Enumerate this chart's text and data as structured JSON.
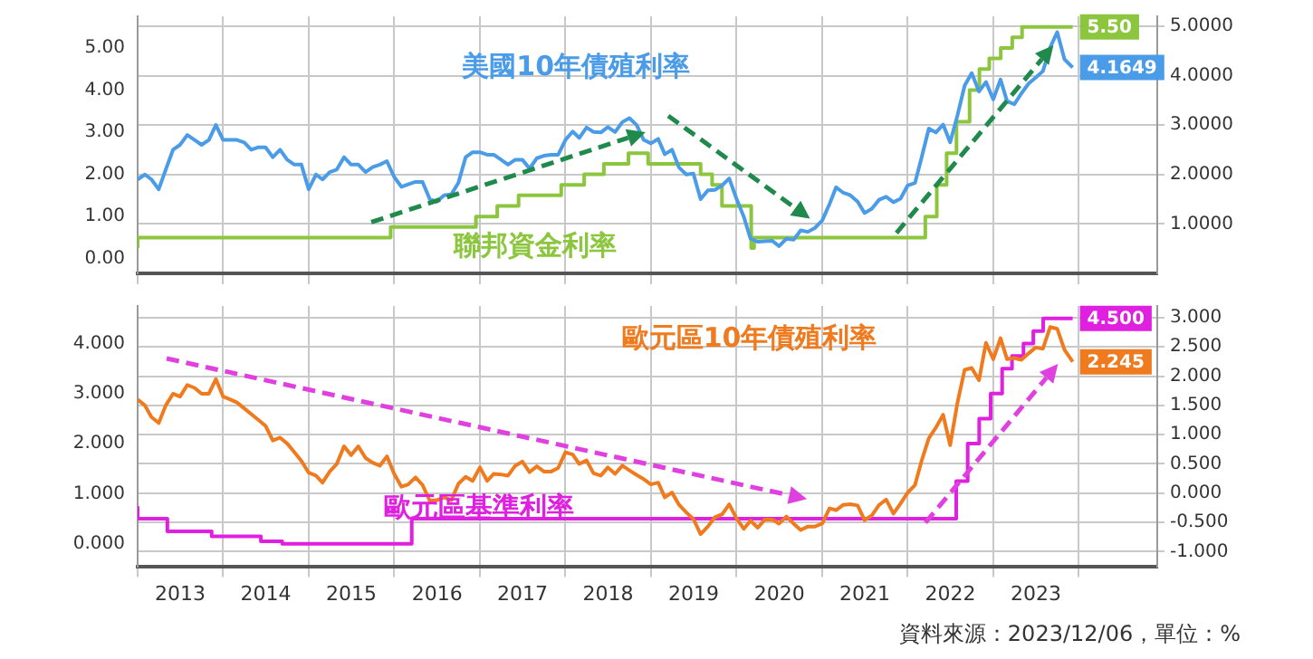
{
  "chart_data": [
    {
      "type": "line",
      "x": [
        "2013-01",
        "2013-02",
        "2013-03",
        "2013-04",
        "2013-05",
        "2013-06",
        "2013-07",
        "2013-08",
        "2013-09",
        "2013-10",
        "2013-11",
        "2013-12",
        "2014-01",
        "2014-02",
        "2014-03",
        "2014-04",
        "2014-05",
        "2014-06",
        "2014-07",
        "2014-08",
        "2014-09",
        "2014-10",
        "2014-11",
        "2014-12",
        "2015-01",
        "2015-02",
        "2015-03",
        "2015-04",
        "2015-05",
        "2015-06",
        "2015-07",
        "2015-08",
        "2015-09",
        "2015-10",
        "2015-11",
        "2015-12",
        "2016-01",
        "2016-02",
        "2016-03",
        "2016-04",
        "2016-05",
        "2016-06",
        "2016-07",
        "2016-08",
        "2016-09",
        "2016-10",
        "2016-11",
        "2016-12",
        "2017-01",
        "2017-02",
        "2017-03",
        "2017-04",
        "2017-05",
        "2017-06",
        "2017-07",
        "2017-08",
        "2017-09",
        "2017-10",
        "2017-11",
        "2017-12",
        "2018-01",
        "2018-02",
        "2018-03",
        "2018-04",
        "2018-05",
        "2018-06",
        "2018-07",
        "2018-08",
        "2018-09",
        "2018-10",
        "2018-11",
        "2018-12",
        "2019-01",
        "2019-02",
        "2019-03",
        "2019-04",
        "2019-05",
        "2019-06",
        "2019-07",
        "2019-08",
        "2019-09",
        "2019-10",
        "2019-11",
        "2019-12",
        "2020-01",
        "2020-02",
        "2020-03",
        "2020-04",
        "2020-05",
        "2020-06",
        "2020-07",
        "2020-08",
        "2020-09",
        "2020-10",
        "2020-11",
        "2020-12",
        "2021-01",
        "2021-02",
        "2021-03",
        "2021-04",
        "2021-05",
        "2021-06",
        "2021-07",
        "2021-08",
        "2021-09",
        "2021-10",
        "2021-11",
        "2021-12",
        "2022-01",
        "2022-02",
        "2022-03",
        "2022-04",
        "2022-05",
        "2022-06",
        "2022-07",
        "2022-08",
        "2022-09",
        "2022-10",
        "2022-11",
        "2022-12",
        "2023-01",
        "2023-02",
        "2023-03",
        "2023-04",
        "2023-05",
        "2023-06",
        "2023-07",
        "2023-08",
        "2023-09",
        "2023-10",
        "2023-11",
        "2023-12-06"
      ],
      "xlim": [
        "2013-01-01",
        "2024-12-01"
      ],
      "xticks": [
        {
          "value": "2013-01-01",
          "label": null
        },
        {
          "value": "2014-01-01",
          "label": null
        },
        {
          "value": "2015-01-01",
          "label": null
        },
        {
          "value": "2016-01-01",
          "label": null
        },
        {
          "value": "2017-01-01",
          "label": null
        },
        {
          "value": "2018-01-01",
          "label": null
        },
        {
          "value": "2019-01-01",
          "label": null
        },
        {
          "value": "2020-01-01",
          "label": null
        },
        {
          "value": "2021-01-01",
          "label": null
        },
        {
          "value": "2022-01-01",
          "label": null
        },
        {
          "value": "2023-01-01",
          "label": null
        },
        {
          "value": "2024-01-01",
          "label": null
        }
      ],
      "ylim": [
        -0.35,
        5.75
      ],
      "yticks": [
        {
          "value": 0,
          "label": "0.00"
        },
        {
          "value": 1,
          "label": "1.00"
        },
        {
          "value": 2,
          "label": "2.00"
        },
        {
          "value": 3,
          "label": "3.00"
        },
        {
          "value": 4,
          "label": "4.00"
        },
        {
          "value": 5,
          "label": "5.00"
        }
      ],
      "y2lim": [
        0,
        5.2
      ],
      "y2ticks": [
        {
          "value": 1,
          "label": "1.0000"
        },
        {
          "value": 2,
          "label": "2.0000"
        },
        {
          "value": 3,
          "label": "3.0000"
        },
        {
          "value": 4,
          "label": "4.0000"
        },
        {
          "value": 5,
          "label": "5.0000"
        }
      ],
      "tick_labels": "y",
      "grid": true,
      "series": [
        {
          "name": "美國10年債殖利率",
          "color": "#4a9be8",
          "axis": "y2",
          "values": [
            1.9,
            2.0,
            1.9,
            1.7,
            2.1,
            2.5,
            2.6,
            2.8,
            2.7,
            2.6,
            2.7,
            3.0,
            2.7,
            2.7,
            2.7,
            2.65,
            2.5,
            2.55,
            2.55,
            2.35,
            2.5,
            2.3,
            2.2,
            2.2,
            1.7,
            2.0,
            1.9,
            2.05,
            2.1,
            2.35,
            2.2,
            2.2,
            2.05,
            2.15,
            2.2,
            2.27,
            1.95,
            1.75,
            1.8,
            1.85,
            1.85,
            1.5,
            1.45,
            1.58,
            1.6,
            1.83,
            2.35,
            2.45,
            2.45,
            2.4,
            2.4,
            2.3,
            2.2,
            2.3,
            2.3,
            2.12,
            2.33,
            2.38,
            2.4,
            2.4,
            2.7,
            2.87,
            2.74,
            2.95,
            2.86,
            2.85,
            2.96,
            2.86,
            3.06,
            3.14,
            3.0,
            2.7,
            2.63,
            2.72,
            2.41,
            2.5,
            2.14,
            2.0,
            2.02,
            1.5,
            1.68,
            1.69,
            1.78,
            1.92,
            1.51,
            1.15,
            0.7,
            0.64,
            0.65,
            0.66,
            0.55,
            0.7,
            0.68,
            0.87,
            0.84,
            0.92,
            1.07,
            1.4,
            1.74,
            1.63,
            1.58,
            1.45,
            1.22,
            1.31,
            1.49,
            1.55,
            1.44,
            1.51,
            1.78,
            1.83,
            2.34,
            2.93,
            2.85,
            3.01,
            2.65,
            3.19,
            3.8,
            4.05,
            3.68,
            3.87,
            3.52,
            3.92,
            3.48,
            3.42,
            3.64,
            3.84,
            3.96,
            4.09,
            4.57,
            4.88,
            4.33,
            4.1649
          ],
          "value_labels": [
            null,
            null,
            null,
            null,
            null,
            null,
            null,
            null,
            null,
            null,
            null,
            null,
            null,
            null,
            null,
            null,
            null,
            null,
            null,
            null,
            null,
            null,
            null,
            null,
            null,
            null,
            null,
            null,
            null,
            null,
            null,
            null,
            null,
            null,
            null,
            null,
            null,
            null,
            null,
            null,
            null,
            null,
            null,
            null,
            null,
            null,
            null,
            null,
            null,
            null,
            null,
            null,
            null,
            null,
            null,
            null,
            null,
            null,
            null,
            null,
            null,
            null,
            null,
            null,
            null,
            null,
            null,
            null,
            null,
            null,
            null,
            null,
            null,
            null,
            null,
            null,
            null,
            null,
            null,
            null,
            null,
            null,
            null,
            null,
            null,
            null,
            null,
            null,
            null,
            null,
            null,
            null,
            null,
            null,
            null,
            null,
            null,
            null,
            null,
            null,
            null,
            null,
            null,
            null,
            null,
            null,
            null,
            null,
            null,
            null,
            null,
            null,
            null,
            null,
            null,
            null,
            null,
            null,
            null,
            null,
            null,
            null,
            null,
            null,
            null,
            null,
            null,
            null,
            null,
            null,
            null,
            "4.1649"
          ]
        },
        {
          "name": "聯邦資金利率",
          "color": "#8cc63f",
          "type": "step",
          "x": [
            "2013-01-01",
            "2015-12-17",
            "2016-12-15",
            "2017-03-16",
            "2017-06-15",
            "2017-12-14",
            "2018-03-22",
            "2018-06-14",
            "2018-09-27",
            "2018-12-20",
            "2019-08-01",
            "2019-09-19",
            "2019-10-31",
            "2020-03-04",
            "2020-03-16",
            "2022-03-17",
            "2022-05-05",
            "2022-06-16",
            "2022-07-28",
            "2022-09-22",
            "2022-11-03",
            "2022-12-15",
            "2023-02-02",
            "2023-03-23",
            "2023-05-04",
            "2023-07-27",
            "2023-12-06"
          ],
          "values": [
            0.25,
            0.5,
            0.75,
            1.0,
            1.25,
            1.5,
            1.75,
            2.0,
            2.25,
            2.5,
            2.25,
            2.0,
            1.75,
            1.25,
            0.25,
            0.5,
            1.0,
            1.75,
            2.5,
            3.25,
            4.0,
            4.5,
            4.75,
            5.0,
            5.25,
            5.5,
            5.5
          ],
          "value_labels": [
            null,
            null,
            null,
            null,
            null,
            null,
            null,
            null,
            null,
            null,
            null,
            null,
            null,
            null,
            null,
            null,
            null,
            null,
            null,
            null,
            null,
            null,
            null,
            null,
            null,
            null,
            "5.50"
          ]
        }
      ]
    },
    {
      "type": "line",
      "x": [
        "2013-01",
        "2013-02",
        "2013-03",
        "2013-04",
        "2013-05",
        "2013-06",
        "2013-07",
        "2013-08",
        "2013-09",
        "2013-10",
        "2013-11",
        "2013-12",
        "2014-01",
        "2014-02",
        "2014-03",
        "2014-04",
        "2014-05",
        "2014-06",
        "2014-07",
        "2014-08",
        "2014-09",
        "2014-10",
        "2014-11",
        "2014-12",
        "2015-01",
        "2015-02",
        "2015-03",
        "2015-04",
        "2015-05",
        "2015-06",
        "2015-07",
        "2015-08",
        "2015-09",
        "2015-10",
        "2015-11",
        "2015-12",
        "2016-01",
        "2016-02",
        "2016-03",
        "2016-04",
        "2016-05",
        "2016-06",
        "2016-07",
        "2016-08",
        "2016-09",
        "2016-10",
        "2016-11",
        "2016-12",
        "2017-01",
        "2017-02",
        "2017-03",
        "2017-04",
        "2017-05",
        "2017-06",
        "2017-07",
        "2017-08",
        "2017-09",
        "2017-10",
        "2017-11",
        "2017-12",
        "2018-01",
        "2018-02",
        "2018-03",
        "2018-04",
        "2018-05",
        "2018-06",
        "2018-07",
        "2018-08",
        "2018-09",
        "2018-10",
        "2018-11",
        "2018-12",
        "2019-01",
        "2019-02",
        "2019-03",
        "2019-04",
        "2019-05",
        "2019-06",
        "2019-07",
        "2019-08",
        "2019-09",
        "2019-10",
        "2019-11",
        "2019-12",
        "2020-01",
        "2020-02",
        "2020-03",
        "2020-04",
        "2020-05",
        "2020-06",
        "2020-07",
        "2020-08",
        "2020-09",
        "2020-10",
        "2020-11",
        "2020-12",
        "2021-01",
        "2021-02",
        "2021-03",
        "2021-04",
        "2021-05",
        "2021-06",
        "2021-07",
        "2021-08",
        "2021-09",
        "2021-10",
        "2021-11",
        "2021-12",
        "2022-01",
        "2022-02",
        "2022-03",
        "2022-04",
        "2022-05",
        "2022-06",
        "2022-07",
        "2022-08",
        "2022-09",
        "2022-10",
        "2022-11",
        "2022-12",
        "2023-01",
        "2023-02",
        "2023-03",
        "2023-04",
        "2023-05",
        "2023-06",
        "2023-07",
        "2023-08",
        "2023-09",
        "2023-10",
        "2023-11",
        "2023-12-06"
      ],
      "xlim": [
        "2013-01-01",
        "2024-12-01"
      ],
      "xticks": [
        {
          "value": "2013-01-01",
          "label": null
        },
        {
          "value": "2013-07-02",
          "label": "2013"
        },
        {
          "value": "2014-01-01",
          "label": null
        },
        {
          "value": "2014-07-02",
          "label": "2014"
        },
        {
          "value": "2015-01-01",
          "label": null
        },
        {
          "value": "2015-07-02",
          "label": "2015"
        },
        {
          "value": "2016-01-01",
          "label": null
        },
        {
          "value": "2016-07-02",
          "label": "2016"
        },
        {
          "value": "2017-01-01",
          "label": null
        },
        {
          "value": "2017-07-02",
          "label": "2017"
        },
        {
          "value": "2018-01-01",
          "label": null
        },
        {
          "value": "2018-07-02",
          "label": "2018"
        },
        {
          "value": "2019-01-01",
          "label": null
        },
        {
          "value": "2019-07-02",
          "label": "2019"
        },
        {
          "value": "2020-01-01",
          "label": null
        },
        {
          "value": "2020-07-02",
          "label": "2020"
        },
        {
          "value": "2021-01-01",
          "label": null
        },
        {
          "value": "2021-07-02",
          "label": "2021"
        },
        {
          "value": "2022-01-01",
          "label": null
        },
        {
          "value": "2022-07-02",
          "label": "2022"
        },
        {
          "value": "2023-01-01",
          "label": null
        },
        {
          "value": "2023-07-02",
          "label": "2023"
        },
        {
          "value": "2024-01-01",
          "label": null
        }
      ],
      "ylim": [
        -0.45,
        4.75
      ],
      "yticks": [
        {
          "value": 0,
          "label": "0.000"
        },
        {
          "value": 1,
          "label": "1.000"
        },
        {
          "value": 2,
          "label": "2.000"
        },
        {
          "value": 3,
          "label": "3.000"
        },
        {
          "value": 4,
          "label": "4.000"
        }
      ],
      "y2lim": [
        -1.25,
        3.2
      ],
      "y2ticks": [
        {
          "value": -1,
          "label": "-1.000"
        },
        {
          "value": -0.5,
          "label": "-0.500"
        },
        {
          "value": 0,
          "label": "0.000"
        },
        {
          "value": 0.5,
          "label": "0.500"
        },
        {
          "value": 1,
          "label": "1.000"
        },
        {
          "value": 1.5,
          "label": "1.500"
        },
        {
          "value": 2,
          "label": "2.000"
        },
        {
          "value": 2.5,
          "label": "2.500"
        },
        {
          "value": 3,
          "label": "3.000"
        }
      ],
      "grid": true,
      "annotations": [
        "資料來源：2023/12/06，單位：%"
      ],
      "series": [
        {
          "name": "歐元區10年債殖利率",
          "color": "#f07a1e",
          "axis": "y2",
          "values": [
            1.6,
            1.5,
            1.3,
            1.2,
            1.5,
            1.7,
            1.65,
            1.85,
            1.8,
            1.7,
            1.7,
            1.95,
            1.65,
            1.6,
            1.55,
            1.45,
            1.35,
            1.25,
            1.15,
            0.9,
            0.95,
            0.85,
            0.7,
            0.55,
            0.35,
            0.3,
            0.18,
            0.37,
            0.5,
            0.8,
            0.65,
            0.8,
            0.6,
            0.52,
            0.47,
            0.63,
            0.33,
            0.11,
            0.15,
            0.27,
            0.14,
            -0.13,
            -0.12,
            -0.07,
            -0.12,
            0.16,
            0.28,
            0.21,
            0.44,
            0.21,
            0.33,
            0.32,
            0.3,
            0.47,
            0.54,
            0.36,
            0.46,
            0.37,
            0.37,
            0.43,
            0.7,
            0.66,
            0.5,
            0.56,
            0.34,
            0.3,
            0.44,
            0.33,
            0.47,
            0.39,
            0.31,
            0.24,
            0.15,
            0.18,
            -0.07,
            0.01,
            -0.2,
            -0.33,
            -0.44,
            -0.7,
            -0.57,
            -0.41,
            -0.36,
            -0.19,
            -0.43,
            -0.61,
            -0.47,
            -0.59,
            -0.45,
            -0.45,
            -0.52,
            -0.4,
            -0.52,
            -0.63,
            -0.57,
            -0.57,
            -0.52,
            -0.26,
            -0.29,
            -0.2,
            -0.19,
            -0.21,
            -0.46,
            -0.38,
            -0.2,
            -0.11,
            -0.35,
            -0.18,
            0.01,
            0.14,
            0.55,
            0.94,
            1.12,
            1.34,
            0.82,
            1.54,
            2.11,
            2.14,
            1.93,
            2.57,
            2.29,
            2.65,
            2.29,
            2.31,
            2.28,
            2.39,
            2.49,
            2.47,
            2.84,
            2.81,
            2.45,
            2.245
          ],
          "value_labels": [
            null,
            null,
            null,
            null,
            null,
            null,
            null,
            null,
            null,
            null,
            null,
            null,
            null,
            null,
            null,
            null,
            null,
            null,
            null,
            null,
            null,
            null,
            null,
            null,
            null,
            null,
            null,
            null,
            null,
            null,
            null,
            null,
            null,
            null,
            null,
            null,
            null,
            null,
            null,
            null,
            null,
            null,
            null,
            null,
            null,
            null,
            null,
            null,
            null,
            null,
            null,
            null,
            null,
            null,
            null,
            null,
            null,
            null,
            null,
            null,
            null,
            null,
            null,
            null,
            null,
            null,
            null,
            null,
            null,
            null,
            null,
            null,
            null,
            null,
            null,
            null,
            null,
            null,
            null,
            null,
            null,
            null,
            null,
            null,
            null,
            null,
            null,
            null,
            null,
            null,
            null,
            null,
            null,
            null,
            null,
            null,
            null,
            null,
            null,
            null,
            null,
            null,
            null,
            null,
            null,
            null,
            null,
            null,
            null,
            null,
            null,
            null,
            null,
            null,
            null,
            null,
            null,
            null,
            null,
            null,
            null,
            null,
            null,
            null,
            null,
            null,
            null,
            null,
            null,
            null,
            null,
            "2.245"
          ]
        },
        {
          "name": "歐元區基準利率",
          "color": "#e020e0",
          "type": "step",
          "x": [
            "2013-01-01",
            "2013-05-08",
            "2013-11-13",
            "2014-06-11",
            "2014-09-10",
            "2016-03-16",
            "2022-07-27",
            "2022-09-14",
            "2022-11-02",
            "2022-12-21",
            "2023-02-08",
            "2023-03-22",
            "2023-05-10",
            "2023-06-21",
            "2023-08-02",
            "2023-09-20",
            "2023-12-06"
          ],
          "values": [
            0.75,
            0.5,
            0.25,
            0.15,
            0.05,
            0.0,
            0.5,
            1.25,
            2.0,
            2.5,
            3.0,
            3.5,
            3.75,
            4.0,
            4.25,
            4.5,
            4.5
          ],
          "value_labels": [
            null,
            null,
            null,
            null,
            null,
            null,
            null,
            null,
            null,
            null,
            null,
            null,
            null,
            null,
            null,
            null,
            "4.500"
          ]
        }
      ]
    }
  ]
}
